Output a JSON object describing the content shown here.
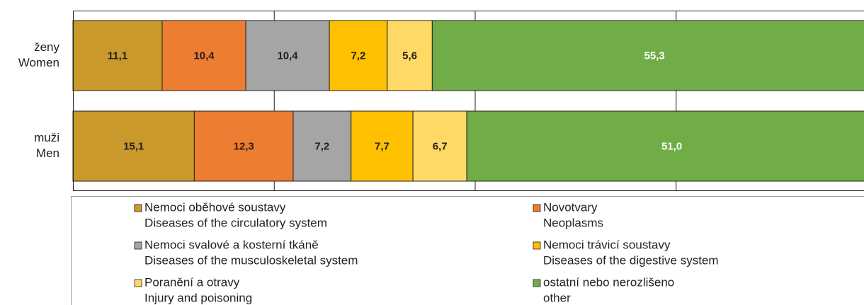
{
  "chart_data": {
    "type": "stacked_bar_horizontal",
    "categories": [
      [
        "ženy",
        "Women"
      ],
      [
        "muži",
        "Men"
      ]
    ],
    "series": [
      {
        "name": "Nemoci oběhové soustavy",
        "name_en": "Diseases of the circulatory system",
        "color": "#c9992c",
        "label_color": "#231f20",
        "values": [
          11.1,
          15.1
        ],
        "value_labels": [
          "11,1",
          "15,1"
        ]
      },
      {
        "name": "Novotvary",
        "name_en": "Neoplasms",
        "color": "#ed7d31",
        "label_color": "#231f20",
        "values": [
          10.4,
          12.3
        ],
        "value_labels": [
          "10,4",
          "12,3"
        ]
      },
      {
        "name": "Nemoci svalové a kosterní tkáně",
        "name_en": "Diseases of the musculoskeletal system",
        "color": "#a5a5a5",
        "label_color": "#231f20",
        "values": [
          10.4,
          7.2
        ],
        "value_labels": [
          "10,4",
          "7,2"
        ]
      },
      {
        "name": "Nemoci trávicí soustavy",
        "name_en": "Diseases of the digestive system",
        "color": "#ffc000",
        "label_color": "#231f20",
        "values": [
          7.2,
          7.7
        ],
        "value_labels": [
          "7,2",
          "7,7"
        ]
      },
      {
        "name": "Poranění a otravy",
        "name_en": "Injury and poisoning",
        "color": "#ffd966",
        "label_color": "#231f20",
        "values": [
          5.6,
          6.7
        ],
        "value_labels": [
          "5,6",
          "6,7"
        ]
      },
      {
        "name": "ostatní nebo nerozlišeno",
        "name_en": "other",
        "color": "#70ad47",
        "label_color": "#ffffff",
        "values": [
          55.3,
          51.0
        ],
        "value_labels": [
          "55,3",
          "51,0"
        ]
      }
    ],
    "xlim": [
      0,
      100
    ],
    "xticks": [
      0,
      25,
      50,
      75,
      100
    ],
    "grid": true
  }
}
